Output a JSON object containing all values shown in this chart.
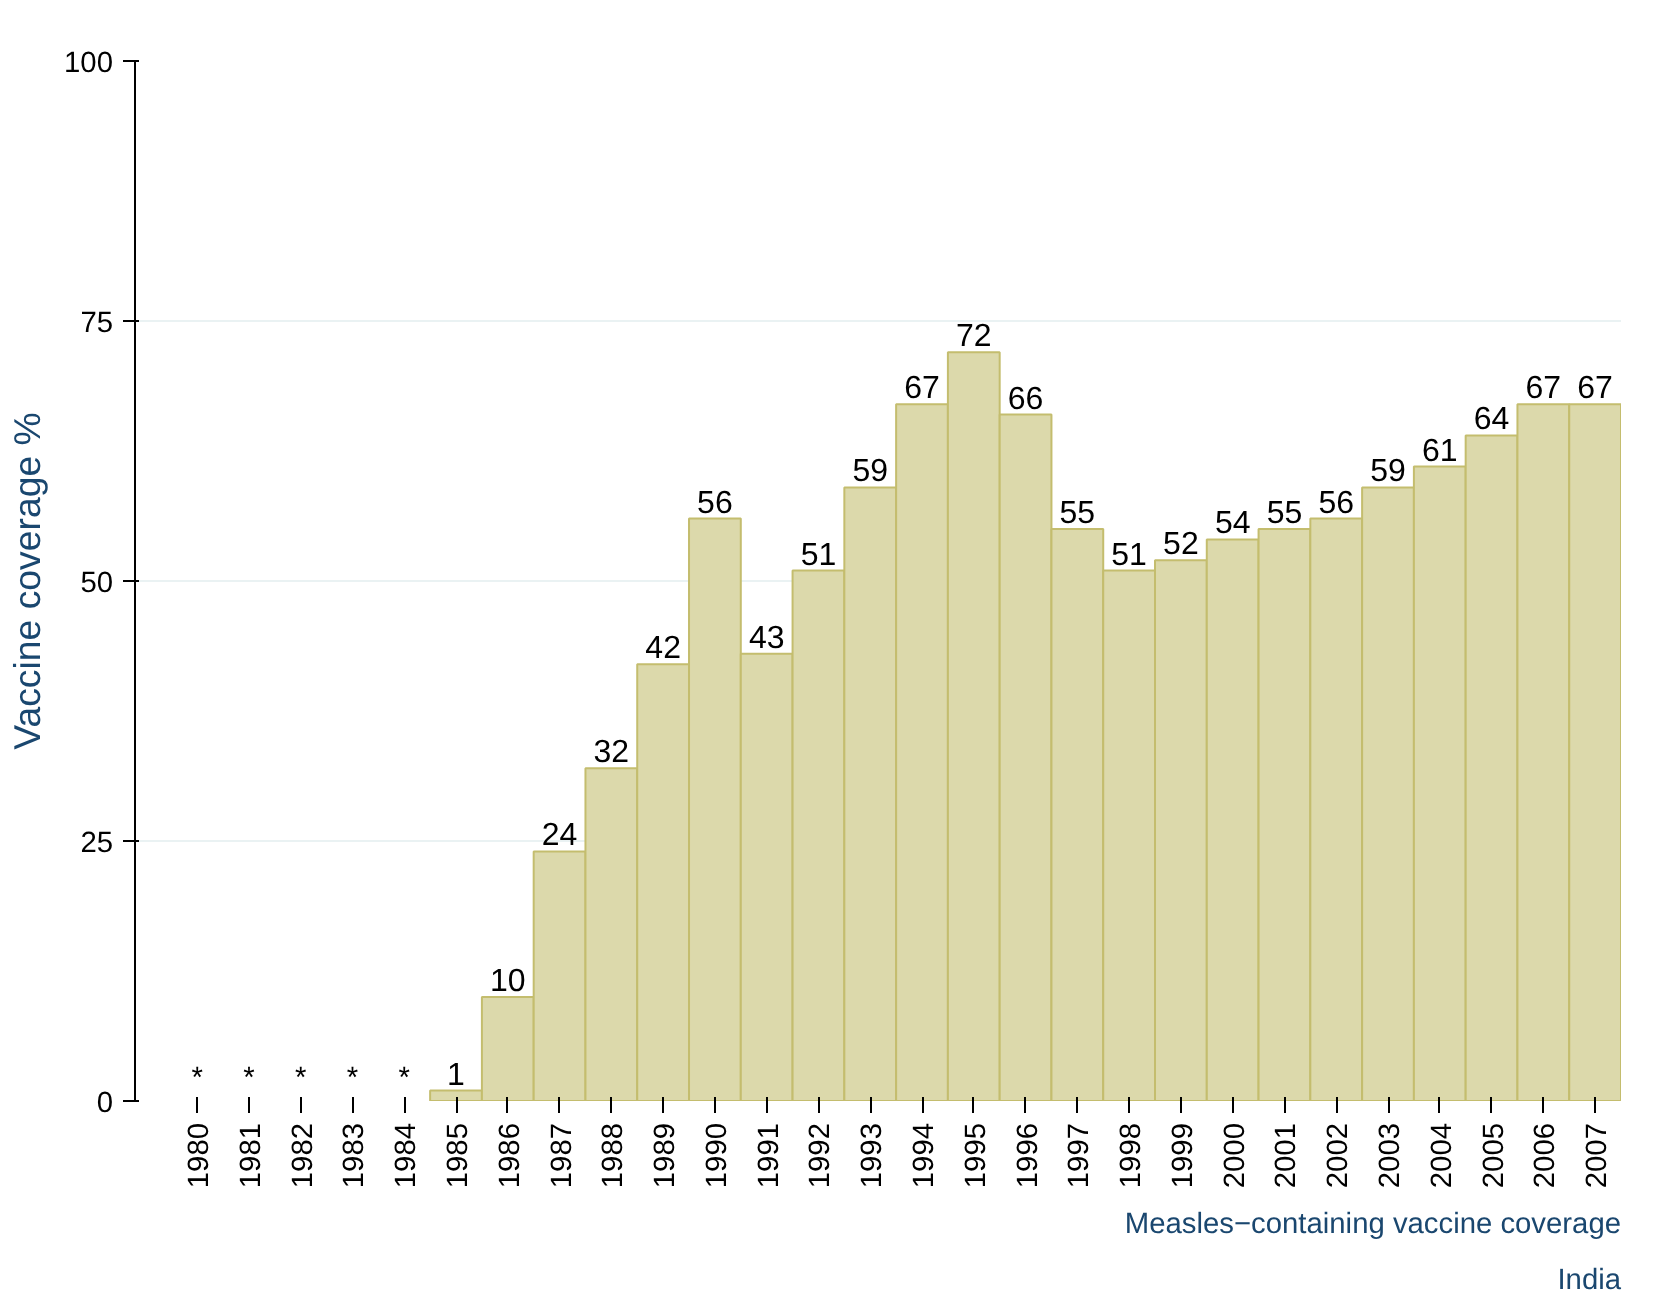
{
  "chart_data": {
    "type": "bar",
    "ylabel": "Vaccine coverage %",
    "categories": [
      "1980",
      "1981",
      "1982",
      "1983",
      "1984",
      "1985",
      "1986",
      "1987",
      "1988",
      "1989",
      "1990",
      "1991",
      "1992",
      "1993",
      "1994",
      "1995",
      "1996",
      "1997",
      "1998",
      "1999",
      "2000",
      "2001",
      "2002",
      "2003",
      "2004",
      "2005",
      "2006",
      "2007"
    ],
    "values": [
      null,
      null,
      null,
      null,
      null,
      1,
      10,
      24,
      32,
      42,
      56,
      43,
      51,
      59,
      67,
      72,
      66,
      55,
      51,
      52,
      54,
      55,
      56,
      59,
      61,
      64,
      67,
      67
    ],
    "value_labels": [
      "*",
      "*",
      "*",
      "*",
      "*",
      "1",
      "10",
      "24",
      "32",
      "42",
      "56",
      "43",
      "51",
      "59",
      "67",
      "72",
      "66",
      "55",
      "51",
      "52",
      "54",
      "55",
      "56",
      "59",
      "61",
      "64",
      "67",
      "67"
    ],
    "color": "#dcd9ab",
    "ylim": [
      0,
      100
    ],
    "yticks": [
      0,
      25,
      50,
      75,
      100
    ],
    "grid": "y",
    "annotations": [
      "Measles−containing vaccine coverage",
      "India"
    ]
  }
}
